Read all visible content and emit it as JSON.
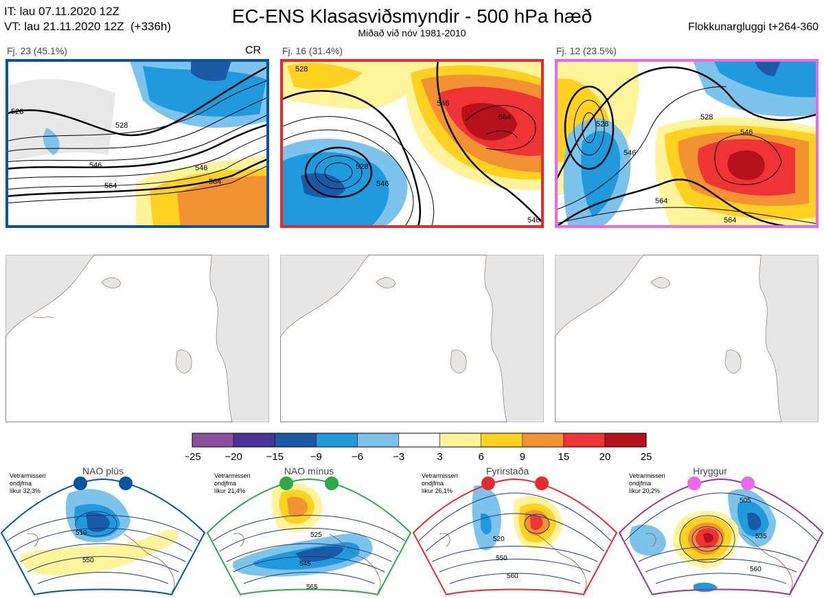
{
  "header": {
    "it_line": "IT: lau 07.11.2020 12Z",
    "vt_line": "VT: lau 21.11.2020 12Z  (+336h)",
    "title": "EC-ENS Klasasviðsmyndir - 500 hPa hæð",
    "subtitle": "Miðað við nóv 1981-2010",
    "window": "Flokkunargluggi t+264-360"
  },
  "clusters": [
    {
      "label": "Fj. 23 (45.1%)",
      "color": "#0055a4",
      "tag": "CR",
      "contours": [
        "528",
        "528",
        "546",
        "546",
        "564",
        "564"
      ]
    },
    {
      "label": "Fj. 16 (31.4%)",
      "color": "#ea2a2a",
      "contours": [
        "528",
        "528",
        "546",
        "546",
        "564",
        "546"
      ]
    },
    {
      "label": "Fj. 12 (23.5%)",
      "color": "#ee66ee",
      "contours": [
        "528",
        "528",
        "546",
        "546",
        "564",
        "564"
      ]
    }
  ],
  "colors": {
    "neg": [
      "#8c4fa0",
      "#4a3396",
      "#1a59a5",
      "#1f9adc",
      "#7cc4ec"
    ],
    "pos": [
      "#fff49a",
      "#ffd21f",
      "#f39233",
      "#ee3434",
      "#b5121b"
    ],
    "land": "#dcdcdc",
    "coast": "#8a6448",
    "contour": "#000000"
  },
  "legend": {
    "ticks": [
      "−25",
      "−20",
      "−15",
      "−9",
      "−6",
      "−3",
      "3",
      "6",
      "9",
      "15",
      "20",
      "25"
    ],
    "colors": [
      "#8c4fa0",
      "#4a3396",
      "#1a59a5",
      "#1f9adc",
      "#7cc4ec",
      "#ffffff",
      "#fff49a",
      "#ffd21f",
      "#f39233",
      "#ee3434",
      "#b5121b"
    ]
  },
  "regimes": [
    {
      "name": "NAO plús",
      "desc": [
        "Vetrarmisseri",
        "ondjfma",
        "líkur 32,3%"
      ],
      "color": "#0055a4",
      "contours": [
        "510",
        "550"
      ]
    },
    {
      "name": "NAO mínus",
      "desc": [
        "Vetrarmisseri",
        "ondjfma",
        "líkur 21,4%"
      ],
      "color": "#2aaa44",
      "contours": [
        "525",
        "545",
        "565"
      ]
    },
    {
      "name": "Fyrirstaða",
      "desc": [
        "Vetrarmisseri",
        "ondjfma",
        "líkur 26,1%"
      ],
      "color": "#ea2a2a",
      "contours": [
        "520",
        "550",
        "560"
      ]
    },
    {
      "name": "Hryggur",
      "desc": [
        "Vetrarmisseri",
        "ondjfma",
        "líkur 20,2%"
      ],
      "color": "#ee66ee",
      "contours": [
        "505",
        "535",
        "560"
      ]
    }
  ]
}
